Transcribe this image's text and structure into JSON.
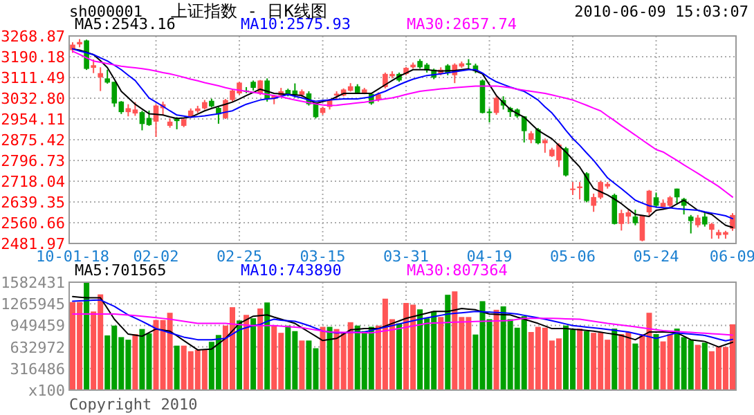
{
  "chart_data": [
    {
      "type": "candlestick",
      "title": "上证指数 - 日K线图",
      "annotations": [
        "sh000001",
        "2010-06-09 15:03:07"
      ],
      "categories": [
        "10-01-18",
        null,
        null,
        null,
        null,
        null,
        null,
        null,
        null,
        null,
        null,
        null,
        "02-02",
        null,
        null,
        null,
        null,
        null,
        null,
        null,
        null,
        null,
        null,
        null,
        "02-25",
        null,
        null,
        null,
        null,
        null,
        null,
        null,
        null,
        null,
        null,
        null,
        "03-15",
        null,
        null,
        null,
        null,
        null,
        null,
        null,
        null,
        null,
        null,
        null,
        "03-31",
        null,
        null,
        null,
        null,
        null,
        null,
        null,
        null,
        null,
        null,
        null,
        "04-19",
        null,
        null,
        null,
        null,
        null,
        null,
        null,
        null,
        null,
        null,
        null,
        "05-06",
        null,
        null,
        null,
        null,
        null,
        null,
        null,
        null,
        null,
        null,
        null,
        "05-24",
        null,
        null,
        null,
        null,
        null,
        null,
        null,
        null,
        null,
        null,
        "06-09"
      ],
      "ohlc": [
        [
          3215,
          3245,
          3205,
          3236
        ],
        [
          3237,
          3257,
          3226,
          3246
        ],
        [
          3252,
          3255,
          3140,
          3144
        ],
        [
          3148,
          3180,
          3128,
          3158
        ],
        [
          3112,
          3150,
          3060,
          3128
        ],
        [
          3108,
          3141,
          3088,
          3092
        ],
        [
          3095,
          3095,
          3000,
          3013
        ],
        [
          3020,
          3022,
          2973,
          2980
        ],
        [
          2980,
          3010,
          2964,
          2995
        ],
        [
          2975,
          3018,
          2966,
          2990
        ],
        [
          2980,
          2985,
          2911,
          2935
        ],
        [
          2958,
          2986,
          2928,
          2931
        ],
        [
          2944,
          3010,
          2886,
          3005
        ],
        [
          2995,
          3020,
          2968,
          3010
        ],
        [
          2928,
          2956,
          2921,
          2944
        ],
        [
          2956,
          2961,
          2915,
          2946
        ],
        [
          2928,
          2958,
          2923,
          2953
        ],
        [
          2961,
          2994,
          2958,
          2986
        ],
        [
          2984,
          3004,
          2977,
          2994
        ],
        [
          2994,
          3026,
          2990,
          3018
        ],
        [
          3023,
          3031,
          2998,
          3002
        ],
        [
          2996,
          3000,
          2936,
          2972
        ],
        [
          2957,
          3030,
          2954,
          3026
        ],
        [
          3026,
          3066,
          3020,
          3062
        ],
        [
          3051,
          3095,
          3046,
          3092
        ],
        [
          3062,
          3075,
          3052,
          3059
        ],
        [
          3095,
          3100,
          3062,
          3072
        ],
        [
          3050,
          3102,
          3045,
          3100
        ],
        [
          3100,
          3108,
          3020,
          3030
        ],
        [
          3030,
          3046,
          3010,
          3043
        ],
        [
          3043,
          3072,
          3040,
          3059
        ],
        [
          3064,
          3069,
          3040,
          3043
        ],
        [
          3062,
          3089,
          3035,
          3045
        ],
        [
          3045,
          3066,
          3036,
          3059
        ],
        [
          3051,
          3059,
          3005,
          3010
        ],
        [
          3015,
          3018,
          2956,
          2961
        ],
        [
          2977,
          3000,
          2970,
          2996
        ],
        [
          3000,
          3030,
          2990,
          3026
        ],
        [
          3043,
          3059,
          3030,
          3050
        ],
        [
          3043,
          3070,
          3040,
          3066
        ],
        [
          3061,
          3090,
          3058,
          3078
        ],
        [
          3078,
          3086,
          3049,
          3054
        ],
        [
          3054,
          3072,
          3048,
          3066
        ],
        [
          3049,
          3054,
          3008,
          3013
        ],
        [
          3027,
          3055,
          3020,
          3048
        ],
        [
          3075,
          3130,
          3070,
          3125
        ],
        [
          3116,
          3135,
          3108,
          3125
        ],
        [
          3125,
          3130,
          3095,
          3100
        ],
        [
          3125,
          3151,
          3120,
          3148
        ],
        [
          3150,
          3168,
          3145,
          3160
        ],
        [
          3174,
          3181,
          3145,
          3150
        ],
        [
          3160,
          3166,
          3130,
          3138
        ],
        [
          3141,
          3145,
          3105,
          3111
        ],
        [
          3125,
          3150,
          3120,
          3141
        ],
        [
          3157,
          3162,
          3120,
          3128
        ],
        [
          3120,
          3165,
          3090,
          3160
        ],
        [
          3153,
          3172,
          3148,
          3165
        ],
        [
          3165,
          3181,
          3141,
          3160
        ],
        [
          3157,
          3164,
          3128,
          3136
        ],
        [
          3100,
          3104,
          2975,
          2977
        ],
        [
          2982,
          2994,
          2941,
          2977
        ],
        [
          2977,
          3040,
          2970,
          3034
        ],
        [
          3026,
          3040,
          2990,
          3005
        ],
        [
          2996,
          3000,
          2962,
          2980
        ],
        [
          2990,
          2994,
          2958,
          2964
        ],
        [
          2964,
          2964,
          2865,
          2908
        ],
        [
          2875,
          2908,
          2862,
          2900
        ],
        [
          2915,
          2920,
          2858,
          2862
        ],
        [
          2862,
          2880,
          2826,
          2873
        ],
        [
          2813,
          2845,
          2810,
          2838
        ],
        [
          2797,
          2862,
          2772,
          2857
        ],
        [
          2843,
          2848,
          2736,
          2740
        ],
        [
          2685,
          2715,
          2666,
          2690
        ],
        [
          2692,
          2715,
          2649,
          2698
        ],
        [
          2748,
          2752,
          2638,
          2643
        ],
        [
          2625,
          2671,
          2602,
          2658
        ],
        [
          2656,
          2720,
          2650,
          2715
        ],
        [
          2698,
          2715,
          2690,
          2708
        ],
        [
          2666,
          2671,
          2554,
          2556
        ],
        [
          2556,
          2610,
          2531,
          2597
        ],
        [
          2584,
          2610,
          2556,
          2600
        ],
        [
          2584,
          2610,
          2551,
          2559
        ],
        [
          2493,
          2590,
          2490,
          2587
        ],
        [
          2600,
          2685,
          2587,
          2682
        ],
        [
          2657,
          2675,
          2617,
          2625
        ],
        [
          2620,
          2649,
          2610,
          2636
        ],
        [
          2625,
          2662,
          2620,
          2657
        ],
        [
          2690,
          2690,
          2630,
          2657
        ],
        [
          2651,
          2655,
          2592,
          2625
        ],
        [
          2584,
          2590,
          2520,
          2567
        ],
        [
          2551,
          2590,
          2543,
          2580
        ],
        [
          2584,
          2597,
          2546,
          2554
        ],
        [
          2534,
          2560,
          2500,
          2556
        ],
        [
          2513,
          2534,
          2500,
          2525
        ],
        [
          2515,
          2530,
          2500,
          2525
        ],
        [
          2538,
          2597,
          2530,
          2590
        ]
      ],
      "colors": [
        "#ff5555",
        "#ff5555",
        "#00a000",
        "#ff5555",
        "#ff5555",
        "#00a000",
        "#00a000",
        "#00a000",
        "#ff5555",
        "#ff5555",
        "#00a000",
        "#00a000",
        "#ff5555",
        "#ff5555",
        "#ff5555",
        "#00a000",
        "#ff5555",
        "#ff5555",
        "#ff5555",
        "#ff5555",
        "#00a000",
        "#00a000",
        "#ff5555",
        "#ff5555",
        "#ff5555",
        "#00a000",
        "#00a000",
        "#ff5555",
        "#00a000",
        "#ff5555",
        "#ff5555",
        "#00a000",
        "#00a000",
        "#ff5555",
        "#00a000",
        "#00a000",
        "#ff5555",
        "#ff5555",
        "#ff5555",
        "#ff5555",
        "#ff5555",
        "#00a000",
        "#ff5555",
        "#00a000",
        "#ff5555",
        "#ff5555",
        "#ff5555",
        "#00a000",
        "#ff5555",
        "#ff5555",
        "#00a000",
        "#00a000",
        "#00a000",
        "#ff5555",
        "#00a000",
        "#ff5555",
        "#ff5555",
        "#00a000",
        "#00a000",
        "#00a000",
        "#00a000",
        "#ff5555",
        "#00a000",
        "#00a000",
        "#00a000",
        "#00a000",
        "#ff5555",
        "#00a000",
        "#ff5555",
        "#ff5555",
        "#ff5555",
        "#00a000",
        "#ff5555",
        "#ff5555",
        "#00a000",
        "#ff5555",
        "#ff5555",
        "#ff5555",
        "#00a000",
        "#ff5555",
        "#ff5555",
        "#00a000",
        "#ff5555",
        "#ff5555",
        "#00a000",
        "#ff5555",
        "#ff5555",
        "#00a000",
        "#00a000",
        "#00a000",
        "#ff5555",
        "#00a000",
        "#ff5555",
        "#ff5555",
        "#ff5555",
        "#ff5555"
      ],
      "series": [
        {
          "type": "line",
          "name": "MA5:2543.16",
          "color": "#000000",
          "values": [
            3220,
            3215,
            3207,
            3198,
            3175,
            3149,
            3105,
            3059,
            3035,
            3010,
            2992,
            2974,
            2972,
            2969,
            2962,
            2956,
            2958,
            2961,
            2973,
            2985,
            2994,
            3002,
            3010,
            3018,
            3030,
            3043,
            3055,
            3067,
            3059,
            3051,
            3049,
            3047,
            3045,
            3043,
            3028,
            3013,
            3020,
            3026,
            3038,
            3051,
            3051,
            3051,
            3051,
            3051,
            3067,
            3084,
            3100,
            3116,
            3128,
            3141,
            3141,
            3141,
            3138,
            3136,
            3137,
            3138,
            3141,
            3144,
            3136,
            3125,
            3084,
            3043,
            3016,
            2990,
            2975,
            2961,
            2936,
            2911,
            2895,
            2879,
            2854,
            2829,
            2800,
            2772,
            2731,
            2690,
            2678,
            2666,
            2650,
            2633,
            2612,
            2592,
            2588,
            2584,
            2608,
            2612,
            2617,
            2632,
            2646,
            2627,
            2608,
            2600,
            2592,
            2571,
            2551,
            2543
          ]
        },
        {
          "type": "line",
          "name": "MA10:2575.93",
          "color": "#0000ff",
          "values": [
            3220,
            3212,
            3205,
            3198,
            3186,
            3174,
            3158,
            3141,
            3120,
            3100,
            3067,
            3034,
            3018,
            3002,
            2985,
            2969,
            2965,
            2961,
            2963,
            2966,
            2970,
            2974,
            2980,
            2985,
            2998,
            3010,
            3018,
            3026,
            3030,
            3032,
            3040,
            3047,
            3040,
            3034,
            3026,
            3021,
            3024,
            3026,
            3028,
            3030,
            3030,
            3030,
            3034,
            3038,
            3050,
            3059,
            3072,
            3084,
            3095,
            3105,
            3112,
            3119,
            3122,
            3125,
            3129,
            3133,
            3137,
            3141,
            3141,
            3128,
            3110,
            3095,
            3085,
            3075,
            3067,
            3059,
            3043,
            3026,
            3000,
            2977,
            2945,
            2911,
            2880,
            2854,
            2825,
            2797,
            2764,
            2731,
            2710,
            2690,
            2668,
            2646,
            2635,
            2625,
            2620,
            2618,
            2617,
            2614,
            2612,
            2610,
            2608,
            2602,
            2597,
            2592,
            2587,
            2576
          ]
        },
        {
          "type": "line",
          "name": "MA30:2657.74",
          "color": "#ff00ff",
          "values": [
            3211,
            3199,
            3186,
            3174,
            3169,
            3164,
            3159,
            3154,
            3151,
            3148,
            3145,
            3141,
            3136,
            3130,
            3125,
            3119,
            3112,
            3105,
            3099,
            3092,
            3086,
            3080,
            3073,
            3067,
            3063,
            3059,
            3055,
            3051,
            3047,
            3043,
            3038,
            3032,
            3026,
            3021,
            3016,
            3011,
            3007,
            3005,
            3006,
            3009,
            3012,
            3015,
            3018,
            3022,
            3026,
            3030,
            3034,
            3040,
            3047,
            3053,
            3059,
            3062,
            3065,
            3068,
            3070,
            3073,
            3075,
            3077,
            3079,
            3079,
            3079,
            3079,
            3076,
            3073,
            3067,
            3063,
            3059,
            3055,
            3051,
            3045,
            3039,
            3033,
            3026,
            3016,
            3006,
            2995,
            2985,
            2966,
            2948,
            2929,
            2911,
            2893,
            2874,
            2856,
            2838,
            2829,
            2813,
            2797,
            2780,
            2764,
            2748,
            2731,
            2715,
            2698,
            2678,
            2658
          ]
        }
      ],
      "ylim": [
        2481.97,
        3268.87
      ],
      "yticks": [
        2481.97,
        2560.66,
        2639.35,
        2718.04,
        2796.73,
        2875.42,
        2954.11,
        {
          "value": 3032.8,
          "label": "3032.80"
        },
        3111.49,
        3190.18,
        3268.87
      ],
      "grid": true,
      "legend": "top"
    },
    {
      "type": "bar",
      "annotations": [
        "Copyright 2010"
      ],
      "categories": [
        null,
        null,
        null,
        null,
        null,
        null,
        null,
        null,
        null,
        null,
        null,
        null,
        null,
        null,
        null,
        null,
        null,
        null,
        null,
        null,
        null,
        null,
        null,
        null,
        null,
        null,
        null,
        null,
        null,
        null,
        null,
        null,
        null,
        null,
        null,
        null,
        null,
        null,
        null,
        null,
        null,
        null,
        null,
        null,
        null,
        null,
        null,
        null,
        null,
        null,
        null,
        null,
        null,
        null,
        null,
        null,
        null,
        null,
        null,
        null,
        null,
        null,
        null,
        null,
        null,
        null,
        null,
        null,
        null,
        null,
        null,
        null,
        null,
        null,
        null,
        null,
        null,
        null,
        null,
        null,
        null,
        null,
        null,
        null,
        null,
        null,
        null,
        null,
        null,
        null,
        null,
        null,
        null,
        null,
        null,
        null
      ],
      "series": [
        {
          "values": [
            1291000,
            1291000,
            1573000,
            1153000,
            1404000,
            802000,
            946000,
            777000,
            739000,
            821000,
            896000,
            833000,
            1028000,
            1028000,
            1134000,
            652000,
            652000,
            570000,
            589000,
            589000,
            708000,
            808000,
            946000,
            1216000,
            1021000,
            1103000,
            1053000,
            1197000,
            1285000,
            946000,
            840000,
            946000,
            865000,
            727000,
            727000,
            614000,
            928000,
            928000,
            896000,
            852000,
            996000,
            946000,
            865000,
            928000,
            946000,
            1341000,
            1040000,
            978000,
            1278000,
            1253000,
            1184000,
            1053000,
            1153000,
            1072000,
            1398000,
            1448000,
            1072000,
            1072000,
            815000,
            1304000,
            1040000,
            1178000,
            1228000,
            1040000,
            915000,
            1084000,
            852000,
            928000,
            915000,
            727000,
            758000,
            946000,
            884000,
            902000,
            865000,
            840000,
            840000,
            739000,
            902000,
            821000,
            852000,
            683000,
            821000,
            1134000,
            821000,
            714000,
            821000,
            902000,
            777000,
            739000,
            664000,
            696000,
            570000,
            633000,
            633000,
            965000
          ],
          "colors": [
            "#ff5555",
            "#ff5555",
            "#00a000",
            "#ff5555",
            "#ff5555",
            "#00a000",
            "#00a000",
            "#00a000",
            "#00a000",
            "#ff5555",
            "#00a000",
            "#00a000",
            "#ff5555",
            "#ff5555",
            "#ff5555",
            "#00a000",
            "#ff5555",
            "#ff5555",
            "#ff5555",
            "#ff5555",
            "#00a000",
            "#00a000",
            "#ff5555",
            "#ff5555",
            "#00a000",
            "#ff5555",
            "#00a000",
            "#ff5555",
            "#00a000",
            "#ff5555",
            "#ff5555",
            "#00a000",
            "#00a000",
            "#ff5555",
            "#00a000",
            "#00a000",
            "#ff5555",
            "#00a000",
            "#ff5555",
            "#ff5555",
            "#ff5555",
            "#00a000",
            "#00a000",
            "#00a000",
            "#ff5555",
            "#ff5555",
            "#ff5555",
            "#00a000",
            "#ff5555",
            "#ff5555",
            "#00a000",
            "#00a000",
            "#00a000",
            "#ff5555",
            "#00a000",
            "#ff5555",
            "#ff5555",
            "#ff5555",
            "#00a000",
            "#00a000",
            "#00a000",
            "#ff5555",
            "#00a000",
            "#00a000",
            "#00a000",
            "#00a000",
            "#ff5555",
            "#ff5555",
            "#ff5555",
            "#ff5555",
            "#ff5555",
            "#00a000",
            "#00a000",
            "#ff5555",
            "#00a000",
            "#ff5555",
            "#ff5555",
            "#ff5555",
            "#00a000",
            "#ff5555",
            "#ff5555",
            "#00a000",
            "#ff5555",
            "#ff5555",
            "#00a000",
            "#ff5555",
            "#ff5555",
            "#00a000",
            "#00a000",
            "#00a000",
            "#ff5555",
            "#00a000",
            "#ff5555",
            "#ff5555",
            "#ff5555",
            "#ff5555"
          ]
        },
        {
          "type": "line",
          "name": "MA5:701565",
          "color": "#000000",
          "values": [
            1372000,
            1363000,
            1354000,
            1354000,
            1354000,
            1200000,
            1040000,
            930000,
            821000,
            806000,
            790000,
            843000,
            896000,
            880000,
            865000,
            796000,
            727000,
            658000,
            589000,
            596000,
            602000,
            680000,
            758000,
            868000,
            978000,
            1031000,
            1084000,
            1094000,
            1103000,
            1070000,
            1040000,
            1009000,
            978000,
            915000,
            852000,
            790000,
            727000,
            742000,
            758000,
            820000,
            884000,
            893000,
            902000,
            902000,
            902000,
            940000,
            978000,
            1015000,
            1053000,
            1078000,
            1103000,
            1128000,
            1153000,
            1153000,
            1153000,
            1175000,
            1197000,
            1188000,
            1178000,
            1147000,
            1116000,
            1110000,
            1106000,
            1103000,
            1070000,
            1040000,
            1009000,
            978000,
            940000,
            902000,
            902000,
            902000,
            892000,
            884000,
            875000,
            865000,
            849000,
            833000,
            818000,
            802000,
            770000,
            739000,
            795000,
            852000,
            852000,
            852000,
            846000,
            840000,
            790000,
            739000,
            726000,
            714000,
            674000,
            633000,
            667000,
            701565
          ]
        },
        {
          "type": "line",
          "name": "MA10:743890",
          "color": "#0000ff",
          "values": [
            1304000,
            1309000,
            1313000,
            1318000,
            1322000,
            1275000,
            1228000,
            1166000,
            1103000,
            1056000,
            1009000,
            956000,
            902000,
            871000,
            840000,
            809000,
            777000,
            758000,
            739000,
            739000,
            739000,
            748000,
            758000,
            821000,
            884000,
            915000,
            946000,
            962000,
            1009000,
            1040000,
            1024000,
            1017000,
            1009000,
            978000,
            946000,
            906000,
            865000,
            852000,
            840000,
            843000,
            846000,
            849000,
            852000,
            876000,
            899000,
            922000,
            946000,
            970000,
            994000,
            1017000,
            1040000,
            1059000,
            1078000,
            1097000,
            1116000,
            1125000,
            1134000,
            1143000,
            1153000,
            1148000,
            1143000,
            1138000,
            1134000,
            1125000,
            1116000,
            1097000,
            1078000,
            1059000,
            1040000,
            1016000,
            993000,
            970000,
            946000,
            935000,
            924000,
            913000,
            902000,
            890000,
            877000,
            865000,
            852000,
            829000,
            806000,
            782000,
            758000,
            785000,
            813000,
            840000,
            830000,
            821000,
            811000,
            802000,
            776000,
            749000,
            722000,
            743890
          ]
        },
        {
          "type": "line",
          "name": "MA30:807364",
          "color": "#ff00ff",
          "values": [
            1116000,
            1116000,
            1116000,
            1116000,
            1116000,
            1116000,
            1116000,
            1108000,
            1100000,
            1092000,
            1084000,
            1073000,
            1062000,
            1051000,
            1040000,
            1025000,
            1009000,
            994000,
            978000,
            978000,
            978000,
            978000,
            978000,
            970000,
            962000,
            954000,
            946000,
            946000,
            946000,
            946000,
            938000,
            931000,
            923000,
            915000,
            899000,
            883000,
            868000,
            852000,
            850000,
            848000,
            846000,
            844000,
            842000,
            840000,
            855000,
            871000,
            886000,
            902000,
            921000,
            940000,
            959000,
            978000,
            983000,
            987000,
            992000,
            996000,
            999000,
            1002000,
            1006000,
            1009000,
            1012000,
            1015000,
            1018000,
            1021000,
            1037000,
            1053000,
            1053000,
            1053000,
            1053000,
            1053000,
            1050000,
            1046000,
            1043000,
            1040000,
            1025000,
            1009000,
            994000,
            978000,
            966000,
            953000,
            941000,
            928000,
            914000,
            900000,
            886000,
            872000,
            865000,
            859000,
            852000,
            846000,
            840000,
            834000,
            827000,
            821000,
            814000,
            807364
          ]
        }
      ],
      "ylim": [
        0,
        1582431
      ],
      "yticks": [
        {
          "value": 0,
          "label": "x100"
        },
        316486,
        632972,
        949459,
        1265945,
        1582431
      ],
      "grid": true,
      "legend": "top",
      "tick_labels": "y"
    }
  ]
}
